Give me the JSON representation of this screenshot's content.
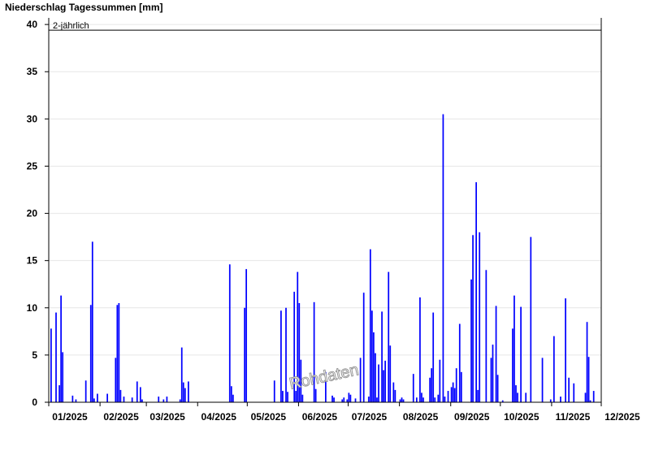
{
  "chart_data": {
    "type": "bar",
    "title": "Niederschlag Tagessummen [mm]",
    "color": "#0000ff",
    "grid": true,
    "threshold": {
      "value": 39.4,
      "label": "2-jährlich"
    },
    "watermark": "Rohdaten",
    "xlim": [
      0,
      334
    ],
    "ylim": [
      0,
      40.7
    ],
    "yticks": [
      0,
      5,
      10,
      15,
      20,
      25,
      30,
      35,
      40
    ],
    "xticks": [
      {
        "value": 0,
        "label": "01/2025"
      },
      {
        "value": 31,
        "label": "02/2025"
      },
      {
        "value": 59,
        "label": "03/2025"
      },
      {
        "value": 90,
        "label": "04/2025"
      },
      {
        "value": 120,
        "label": "05/2025"
      },
      {
        "value": 151,
        "label": "06/2025"
      },
      {
        "value": 181,
        "label": "07/2025"
      },
      {
        "value": 212,
        "label": "08/2025"
      },
      {
        "value": 243,
        "label": "09/2025"
      },
      {
        "value": 273,
        "label": "10/2025"
      },
      {
        "value": 304,
        "label": "11/2025"
      },
      {
        "value": 334,
        "label": "12/2025"
      }
    ],
    "x": [
      1,
      4,
      6,
      7,
      8,
      14,
      16,
      22,
      25,
      26,
      27,
      29,
      35,
      40,
      41,
      42,
      43,
      45,
      50,
      53,
      55,
      56,
      66,
      69,
      71,
      79,
      80,
      81,
      82,
      84,
      109,
      110,
      111,
      118,
      119,
      136,
      140,
      141,
      143,
      144,
      148,
      149,
      150,
      151,
      152,
      153,
      160,
      161,
      167,
      171,
      172,
      177,
      178,
      180,
      181,
      182,
      185,
      188,
      190,
      193,
      194,
      195,
      196,
      197,
      198,
      199,
      201,
      202,
      203,
      205,
      206,
      208,
      209,
      212,
      213,
      214,
      220,
      222,
      224,
      225,
      226,
      230,
      231,
      232,
      233,
      235,
      236,
      238,
      239,
      241,
      243,
      244,
      245,
      246,
      248,
      249,
      255,
      256,
      258,
      259,
      260,
      264,
      267,
      268,
      270,
      271,
      274,
      280,
      281,
      282,
      283,
      285,
      288,
      291,
      298,
      303,
      305,
      309,
      312,
      314,
      317,
      324,
      325,
      326,
      327,
      329
    ],
    "values": [
      7.8,
      9.5,
      1.8,
      11.3,
      5.3,
      0.7,
      0.3,
      2.3,
      10.3,
      17,
      0.4,
      0.9,
      0.9,
      4.7,
      10.3,
      10.5,
      1.3,
      0.6,
      0.5,
      2.2,
      1.6,
      0.3,
      0.6,
      0.3,
      0.6,
      0.3,
      5.8,
      2.1,
      1.5,
      2.2,
      14.6,
      1.7,
      0.8,
      10,
      14.1,
      2.3,
      9.7,
      1.2,
      10,
      1.1,
      11.7,
      1.2,
      13.8,
      10.5,
      4.5,
      0.8,
      10.6,
      1.4,
      3.2,
      0.7,
      0.5,
      0.3,
      0.5,
      0.3,
      1,
      0.8,
      0.4,
      4.7,
      11.6,
      0.6,
      16.2,
      9.7,
      7.4,
      5.2,
      0.5,
      4,
      9.6,
      3.4,
      4.4,
      13.8,
      6,
      2.1,
      1.3,
      0.3,
      0.5,
      0.3,
      3,
      0.5,
      11.1,
      1,
      0.5,
      2.6,
      3.6,
      9.5,
      0.5,
      0.8,
      4.5,
      30.5,
      0.6,
      1.2,
      1.6,
      2.1,
      1.5,
      3.6,
      8.3,
      3.2,
      13,
      17.7,
      23.3,
      1.3,
      18,
      14,
      4.7,
      6.1,
      10.2,
      2.9,
      0.2,
      7.8,
      11.3,
      1.8,
      1,
      10.1,
      1,
      17.5,
      4.7,
      0.3,
      7,
      0.6,
      11,
      2.6,
      2,
      1,
      8.5,
      4.8,
      0.2,
      1.2
    ]
  }
}
